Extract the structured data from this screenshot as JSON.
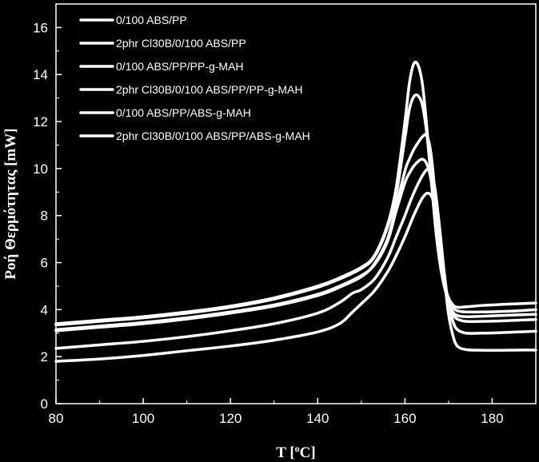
{
  "chart_data": {
    "type": "line",
    "title": "",
    "xlabel": "T [°C]",
    "xlabel_main": "T [",
    "xlabel_sup": "o",
    "xlabel_end": "C]",
    "ylabel": "Ροή Θερμότητας [mW]",
    "xlim": [
      80,
      190
    ],
    "ylim": [
      0,
      17
    ],
    "x_ticks": [
      80,
      100,
      120,
      140,
      160,
      180
    ],
    "y_ticks": [
      0,
      2,
      4,
      6,
      8,
      10,
      12,
      14,
      16
    ],
    "grid": false,
    "legend_position": "top-left",
    "line_color": "#ffffff",
    "background": "#000000",
    "series": [
      {
        "name": "0/100 ABS/PP",
        "x": [
          80,
          90,
          100,
          110,
          120,
          130,
          140,
          145,
          150,
          153,
          156,
          158,
          160,
          161,
          162,
          163,
          164,
          165,
          166,
          167,
          168,
          169,
          170,
          171,
          172,
          174,
          178,
          182,
          186,
          190
        ],
        "y": [
          3.4,
          3.55,
          3.7,
          3.9,
          4.15,
          4.5,
          5.0,
          5.35,
          5.8,
          6.3,
          7.6,
          9.2,
          12.0,
          13.6,
          14.45,
          14.4,
          13.6,
          11.8,
          9.6,
          7.5,
          6.0,
          5.0,
          4.4,
          4.1,
          3.95,
          3.9,
          3.9,
          3.92,
          3.95,
          4.0
        ]
      },
      {
        "name": "2phr Cl30B/0/100 ABS/PP",
        "x": [
          80,
          90,
          100,
          110,
          120,
          130,
          140,
          145,
          150,
          153,
          156,
          158,
          160,
          161,
          162,
          163,
          164,
          165,
          166,
          167,
          168,
          169,
          170,
          171,
          172,
          174,
          178,
          182,
          186,
          190
        ],
        "y": [
          3.35,
          3.5,
          3.65,
          3.85,
          4.1,
          4.45,
          4.95,
          5.3,
          5.75,
          6.25,
          7.5,
          8.9,
          11.3,
          12.5,
          13.05,
          13.1,
          12.7,
          11.5,
          9.6,
          7.6,
          6.1,
          5.1,
          4.5,
          4.2,
          4.1,
          4.12,
          4.18,
          4.22,
          4.25,
          4.28
        ]
      },
      {
        "name": "0/100 ABS/PP/PP-g-MAH",
        "x": [
          80,
          90,
          100,
          110,
          120,
          130,
          140,
          145,
          150,
          153,
          156,
          158,
          160,
          161,
          162,
          163,
          164,
          165,
          166,
          167,
          168,
          169,
          170,
          171,
          172,
          174,
          178,
          182,
          186,
          190
        ],
        "y": [
          3.1,
          3.25,
          3.4,
          3.6,
          3.85,
          4.15,
          4.6,
          4.95,
          5.4,
          5.95,
          7.0,
          8.4,
          9.9,
          10.4,
          10.8,
          11.1,
          11.35,
          11.4,
          10.6,
          8.7,
          6.6,
          5.1,
          4.3,
          3.9,
          3.75,
          3.7,
          3.72,
          3.75,
          3.78,
          3.8
        ]
      },
      {
        "name": "2phr Cl30B/0/100 ABS/PP/PP-g-MAH",
        "x": [
          80,
          90,
          100,
          110,
          120,
          130,
          140,
          145,
          150,
          153,
          156,
          158,
          160,
          161,
          162,
          163,
          164,
          165,
          166,
          167,
          168,
          169,
          170,
          171,
          172,
          174,
          178,
          182,
          186,
          190
        ],
        "y": [
          3.15,
          3.3,
          3.45,
          3.65,
          3.9,
          4.2,
          4.65,
          5.0,
          5.45,
          5.9,
          6.9,
          8.2,
          9.4,
          9.8,
          10.1,
          10.3,
          10.4,
          10.2,
          9.5,
          8.2,
          6.6,
          5.2,
          4.3,
          3.8,
          3.6,
          3.5,
          3.5,
          3.52,
          3.55,
          3.58
        ]
      },
      {
        "name": "0/100 ABS/PP/ABS-g-MAH",
        "x": [
          80,
          90,
          100,
          110,
          120,
          130,
          140,
          145,
          148,
          150,
          153,
          156,
          158,
          160,
          161,
          162,
          163,
          164,
          165,
          166,
          167,
          168,
          169,
          170,
          171,
          172,
          174,
          178,
          182,
          186,
          190
        ],
        "y": [
          2.35,
          2.5,
          2.65,
          2.85,
          3.1,
          3.4,
          3.85,
          4.3,
          4.7,
          4.85,
          5.3,
          6.2,
          7.1,
          8.0,
          8.5,
          8.95,
          9.35,
          9.7,
          9.95,
          9.9,
          9.0,
          7.4,
          5.6,
          4.2,
          3.5,
          3.15,
          3.0,
          3.0,
          3.02,
          3.05,
          3.08
        ]
      },
      {
        "name": "2phr Cl30B/0/100 ABS/PP/ABS-g-MAH",
        "x": [
          80,
          90,
          100,
          110,
          120,
          130,
          140,
          145,
          148,
          150,
          153,
          156,
          158,
          160,
          161,
          162,
          163,
          164,
          165,
          166,
          167,
          168,
          169,
          170,
          171,
          172,
          174,
          178,
          182,
          186,
          190
        ],
        "y": [
          1.8,
          1.9,
          2.05,
          2.25,
          2.45,
          2.7,
          3.05,
          3.4,
          3.9,
          4.25,
          4.8,
          5.6,
          6.3,
          7.1,
          7.55,
          8.0,
          8.4,
          8.75,
          8.95,
          8.85,
          8.3,
          7.1,
          5.4,
          3.8,
          2.9,
          2.45,
          2.3,
          2.27,
          2.27,
          2.28,
          2.28
        ]
      }
    ]
  }
}
